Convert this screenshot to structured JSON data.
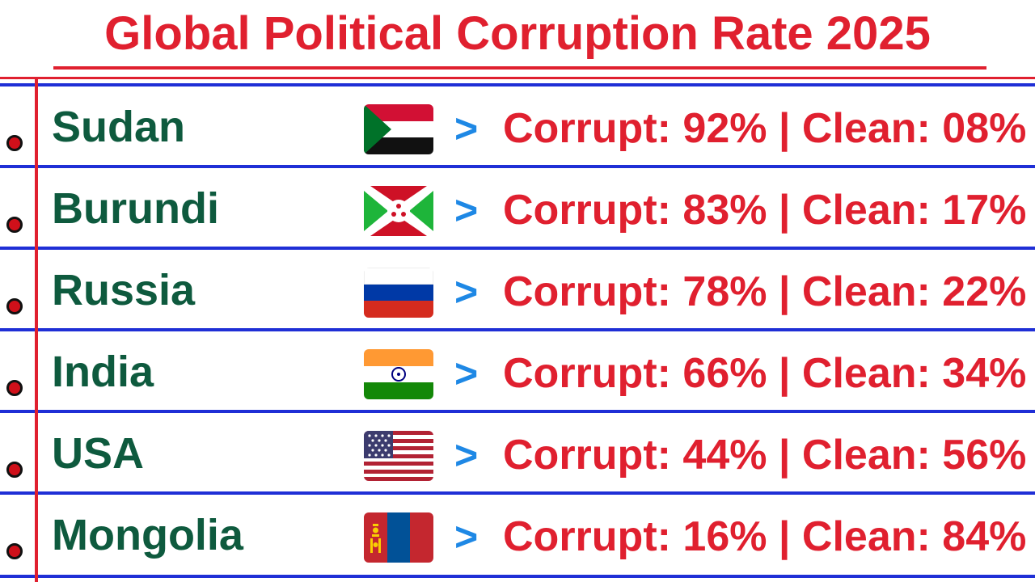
{
  "title": "Global Political Corruption Rate 2025",
  "colors": {
    "title": "#e0202f",
    "country": "#0e5a3e",
    "stat": "#e0202f",
    "arrow": "#1e88e5",
    "row_rule": "#1f2fd6",
    "margin_rule": "#e0202f"
  },
  "rows": [
    {
      "country": "Sudan",
      "flag_icon": "sudan-flag-icon",
      "arrow": ">",
      "stat": "Corrupt: 92% | Clean: 08%",
      "corrupt_percent": 92,
      "clean_percent": 8
    },
    {
      "country": "Burundi",
      "flag_icon": "burundi-flag-icon",
      "arrow": ">",
      "stat": "Corrupt: 83% | Clean: 17%",
      "corrupt_percent": 83,
      "clean_percent": 17
    },
    {
      "country": "Russia",
      "flag_icon": "russia-flag-icon",
      "arrow": ">",
      "stat": "Corrupt: 78% | Clean: 22%",
      "corrupt_percent": 78,
      "clean_percent": 22
    },
    {
      "country": "India",
      "flag_icon": "india-flag-icon",
      "arrow": ">",
      "stat": "Corrupt: 66% | Clean: 34%",
      "corrupt_percent": 66,
      "clean_percent": 34
    },
    {
      "country": "USA",
      "flag_icon": "usa-flag-icon",
      "arrow": ">",
      "stat": "Corrupt: 44% | Clean: 56%",
      "corrupt_percent": 44,
      "clean_percent": 56
    },
    {
      "country": "Mongolia",
      "flag_icon": "mongolia-flag-icon",
      "arrow": ">",
      "stat": "Corrupt: 16% | Clean: 84%",
      "corrupt_percent": 16,
      "clean_percent": 84
    }
  ]
}
